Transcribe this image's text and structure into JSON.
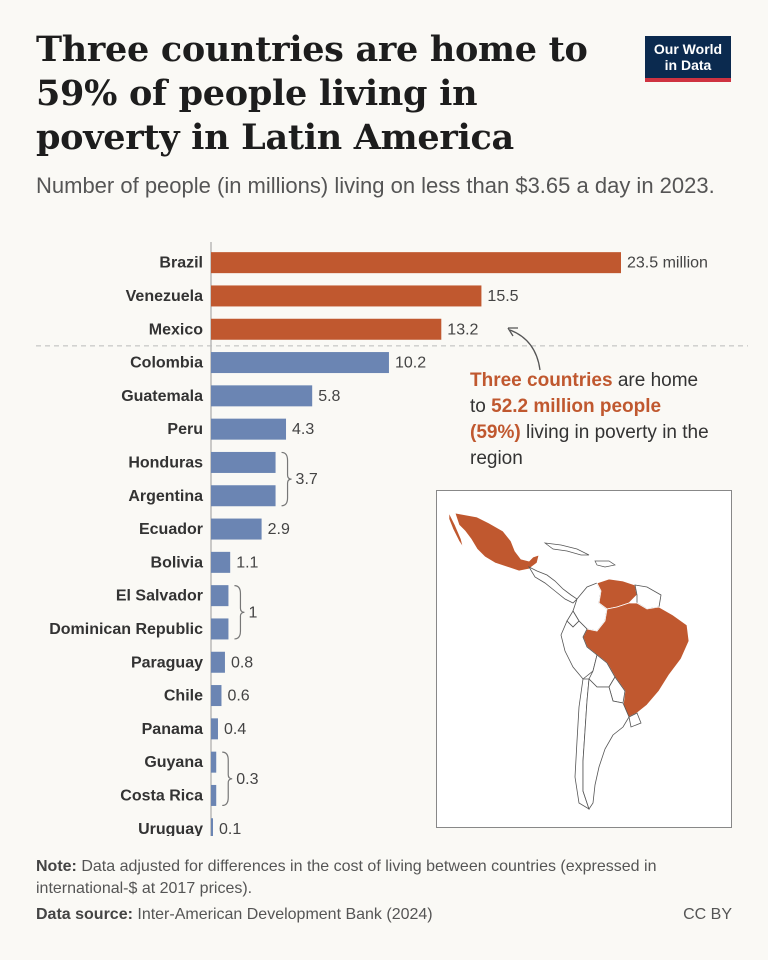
{
  "header": {
    "title": "Three countries are home to 59% of people living in poverty in Latin America",
    "subtitle": "Number of people (in millions) living on less than $3.65 a day in 2023."
  },
  "logo": {
    "line1": "Our World",
    "line2": "in Data"
  },
  "annotation": {
    "p1": "Three countries",
    "p2": " are home to ",
    "p3": "52.2 million people (59%)",
    "p4": " living in poverty in the region"
  },
  "footer": {
    "note_label": "Note:",
    "note_text": " Data adjusted for differences in the cost of living between countries (expressed in international-$ at 2017 prices).",
    "source_label": "Data source:",
    "source_text": " Inter-American Development Bank (2024)",
    "license": "CC BY"
  },
  "colors": {
    "highlight": "#c0582f",
    "default": "#6b85b3",
    "divider": "#bbbbbb"
  },
  "chart_data": {
    "type": "bar",
    "orientation": "horizontal",
    "title": "Three countries are home to 59% of people living in poverty in Latin America",
    "unit": "million",
    "categories": [
      "Brazil",
      "Venezuela",
      "Mexico",
      "Colombia",
      "Guatemala",
      "Peru",
      "Honduras",
      "Argentina",
      "Ecuador",
      "Bolivia",
      "El Salvador",
      "Dominican Republic",
      "Paraguay",
      "Chile",
      "Panama",
      "Guyana",
      "Costa Rica",
      "Uruguay"
    ],
    "values": [
      23.5,
      15.5,
      13.2,
      10.2,
      5.8,
      4.3,
      3.7,
      3.7,
      2.9,
      1.1,
      1,
      1,
      0.8,
      0.6,
      0.4,
      0.3,
      0.3,
      0.1
    ],
    "highlighted": [
      "Brazil",
      "Venezuela",
      "Mexico"
    ],
    "value_labels": [
      "23.5 million",
      "15.5",
      "13.2",
      "10.2",
      "5.8",
      "4.3",
      null,
      null,
      "2.9",
      "1.1",
      null,
      null,
      "0.8",
      "0.6",
      "0.4",
      null,
      null,
      "0.1"
    ],
    "grouped_labels": [
      {
        "from": 6,
        "to": 7,
        "label": "3.7"
      },
      {
        "from": 10,
        "to": 11,
        "label": "1"
      },
      {
        "from": 15,
        "to": 16,
        "label": "0.3"
      }
    ],
    "divider_after_index": 2,
    "xlim": [
      0,
      23.5
    ]
  }
}
